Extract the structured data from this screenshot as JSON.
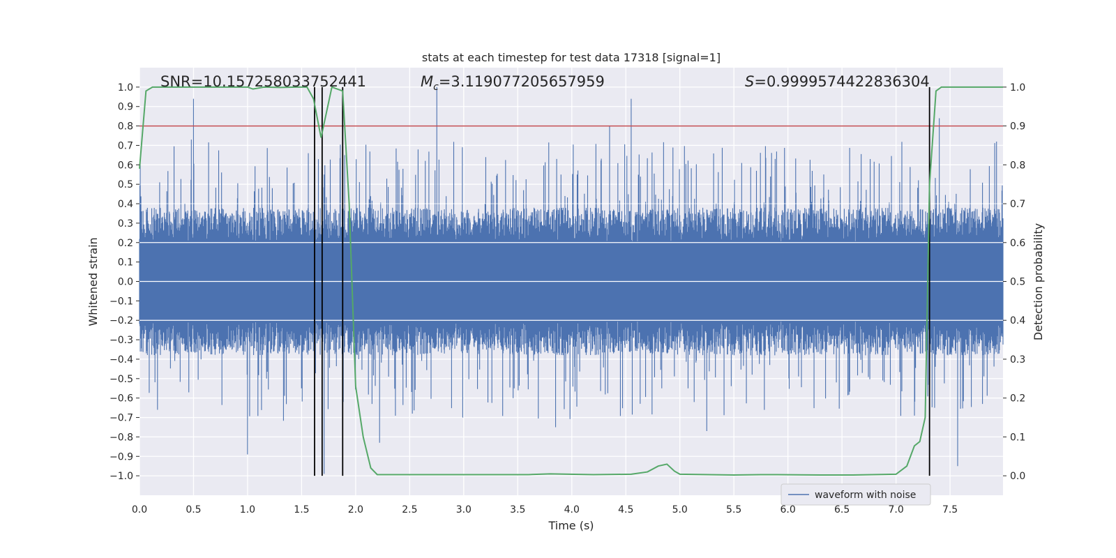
{
  "chart_data": {
    "type": "line",
    "title": "stats at each timestep for test data 17318 [signal=1]",
    "xlabel": "Time (s)",
    "ylabel": "Whitened strain",
    "y2label": "Detection probability",
    "xlim": [
      0.0,
      7.99
    ],
    "ylim": [
      -1.1,
      1.1
    ],
    "y2lim": [
      -0.05,
      1.05
    ],
    "xticks": [
      0.0,
      0.5,
      1.0,
      1.5,
      2.0,
      2.5,
      3.0,
      3.5,
      4.0,
      4.5,
      5.0,
      5.5,
      6.0,
      6.5,
      7.0,
      7.5
    ],
    "xtick_labels": [
      "0.0",
      "0.5",
      "1.0",
      "1.5",
      "2.0",
      "2.5",
      "3.0",
      "3.5",
      "4.0",
      "4.5",
      "5.0",
      "5.5",
      "6.0",
      "6.5",
      "7.0",
      "7.5"
    ],
    "yticks": [
      1.0,
      0.9,
      0.8,
      0.7,
      0.6,
      0.5,
      0.4,
      0.3,
      0.2,
      0.1,
      0.0,
      -0.1,
      -0.2,
      -0.3,
      -0.4,
      -0.5,
      -0.6,
      -0.7,
      -0.8,
      -0.9,
      -1.0
    ],
    "ytick_labels": [
      "1.0",
      "0.9",
      "0.8",
      "0.7",
      "0.6",
      "0.5",
      "0.4",
      "0.3",
      "0.2",
      "0.1",
      "0.0",
      "−0.1",
      "−0.2",
      "−0.3",
      "−0.4",
      "−0.5",
      "−0.6",
      "−0.7",
      "−0.8",
      "−0.9",
      "−1.0"
    ],
    "y2ticks": [
      1.0,
      0.9,
      0.8,
      0.7,
      0.6,
      0.5,
      0.4,
      0.3,
      0.2,
      0.1,
      0.0
    ],
    "y2tick_labels": [
      "1.0",
      "0.9",
      "0.8",
      "0.7",
      "0.6",
      "0.5",
      "0.4",
      "0.3",
      "0.2",
      "0.1",
      "0.0"
    ],
    "grid": true,
    "legend": {
      "placement": "lower-right",
      "entries": [
        "waveform with noise"
      ]
    },
    "annotations": {
      "snr": "SNR=10.157258033752441",
      "mc_symbol": "M",
      "mc_sub": "c",
      "mc_value": "=3.119077205657959",
      "s_symbol": "S",
      "s_value": "=0.9999574422836304"
    },
    "threshold": {
      "value": 0.9,
      "axis": "y2",
      "color": "#c44e52"
    },
    "vlines": [
      1.62,
      1.69,
      1.88,
      7.31
    ],
    "series": [
      {
        "name": "waveform with noise",
        "axis": "y",
        "color": "#4c72b0",
        "kind": "noise",
        "core_amplitude": 0.2,
        "typical_peak": 0.4,
        "notable_peaks": [
          {
            "x": 0.5,
            "y": 0.94
          },
          {
            "x": 0.48,
            "y": 0.73
          },
          {
            "x": 1.0,
            "y": -0.89
          },
          {
            "x": 1.71,
            "y": -0.99
          },
          {
            "x": 1.9,
            "y": 0.65
          },
          {
            "x": 2.22,
            "y": -0.83
          },
          {
            "x": 2.75,
            "y": 1.0
          },
          {
            "x": 3.85,
            "y": -0.75
          },
          {
            "x": 4.35,
            "y": 0.8
          },
          {
            "x": 4.55,
            "y": 0.94
          },
          {
            "x": 5.25,
            "y": -0.77
          },
          {
            "x": 7.4,
            "y": 0.84
          },
          {
            "x": 7.57,
            "y": -0.95
          }
        ]
      },
      {
        "name": "",
        "axis": "y2",
        "color": "#55a868",
        "x": [
          0.0,
          0.06,
          0.12,
          0.25,
          0.4,
          0.6,
          0.8,
          1.0,
          1.05,
          1.15,
          1.3,
          1.45,
          1.55,
          1.61,
          1.68,
          1.78,
          1.88,
          1.94,
          2.0,
          2.07,
          2.14,
          2.2,
          2.4,
          3.0,
          3.6,
          3.8,
          4.2,
          4.55,
          4.7,
          4.8,
          4.88,
          4.95,
          5.0,
          5.5,
          5.75,
          5.9,
          6.3,
          6.6,
          7.0,
          7.1,
          7.17,
          7.22,
          7.27,
          7.31,
          7.37,
          7.42,
          7.99
        ],
        "y": [
          0.79,
          0.99,
          1.0,
          1.0,
          1.0,
          1.0,
          1.0,
          1.0,
          0.995,
          1.0,
          0.999,
          1.0,
          1.0,
          0.97,
          0.87,
          1.0,
          0.99,
          0.7,
          0.23,
          0.1,
          0.02,
          0.003,
          0.003,
          0.003,
          0.003,
          0.005,
          0.003,
          0.004,
          0.01,
          0.025,
          0.03,
          0.012,
          0.004,
          0.002,
          0.003,
          0.003,
          0.002,
          0.002,
          0.004,
          0.025,
          0.077,
          0.088,
          0.15,
          0.75,
          0.99,
          1.0,
          1.0
        ]
      }
    ]
  }
}
